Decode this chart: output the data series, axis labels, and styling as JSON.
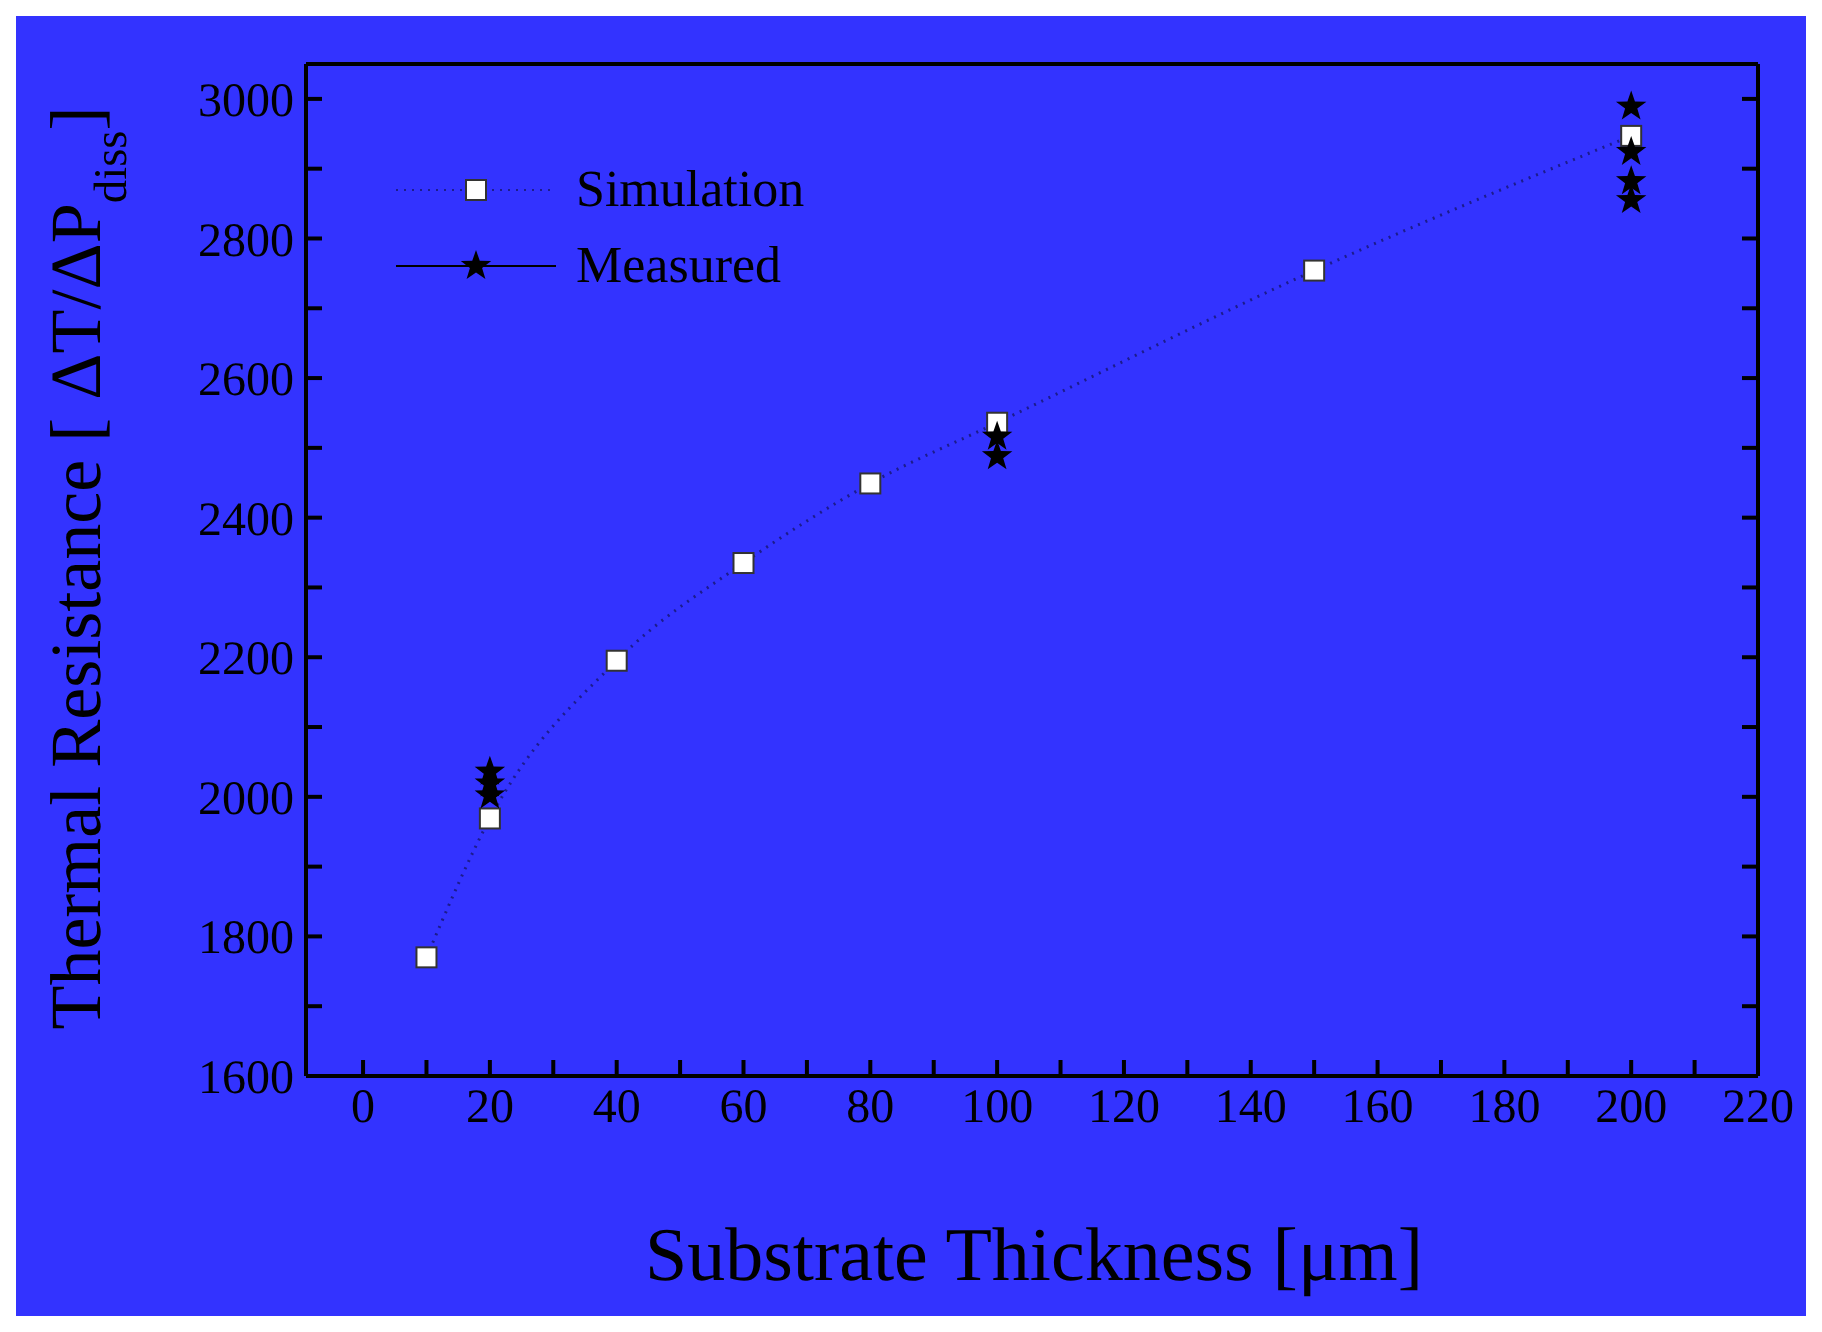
{
  "chart_data": {
    "type": "line",
    "xlabel": "Substrate Thickness [μm]",
    "ylabel": "Thermal Resistance [ ΔT/ΔP$_{diss}$]",
    "xlim": [
      -9,
      220
    ],
    "xticks": [
      0,
      {
        "value": 10,
        "label": null
      },
      20,
      {
        "value": 30,
        "label": null
      },
      40,
      {
        "value": 50,
        "label": null
      },
      60,
      {
        "value": 70,
        "label": null
      },
      80,
      {
        "value": 90,
        "label": null
      },
      100,
      {
        "value": 110,
        "label": null
      },
      120,
      {
        "value": 130,
        "label": null
      },
      140,
      {
        "value": 150,
        "label": null
      },
      160,
      {
        "value": 170,
        "label": null
      },
      180,
      {
        "value": 190,
        "label": null
      },
      200,
      {
        "value": 210,
        "label": null
      },
      220
    ],
    "ylim": [
      1600,
      3050
    ],
    "yticks": [
      1600,
      {
        "value": 1700,
        "label": null
      },
      1800,
      {
        "value": 1900,
        "label": null
      },
      2000,
      {
        "value": 2100,
        "label": null
      },
      2200,
      {
        "value": 2300,
        "label": null
      },
      2400,
      {
        "value": 2500,
        "label": null
      },
      2600,
      {
        "value": 2700,
        "label": null
      },
      2800,
      {
        "value": 2900,
        "label": null
      },
      3000
    ],
    "grid": false,
    "legend": "top left",
    "series": [
      {
        "name": "Simulation",
        "color": "#ffffff",
        "marker": "square",
        "line_style": "dotted",
        "x": [
          10,
          20,
          40,
          60,
          80,
          100,
          150,
          200
        ],
        "values": [
          1770,
          1969,
          2195,
          2335,
          2449,
          2536,
          2754,
          2947
        ]
      },
      {
        "name": "Measured",
        "type": "scatter",
        "color": "#000000",
        "marker": "star",
        "x": [
          20,
          20,
          20,
          100,
          100,
          200,
          200,
          200,
          200
        ],
        "values": [
          2036,
          2019,
          2002,
          2516,
          2488,
          2989,
          2924,
          2882,
          2855
        ]
      }
    ]
  }
}
